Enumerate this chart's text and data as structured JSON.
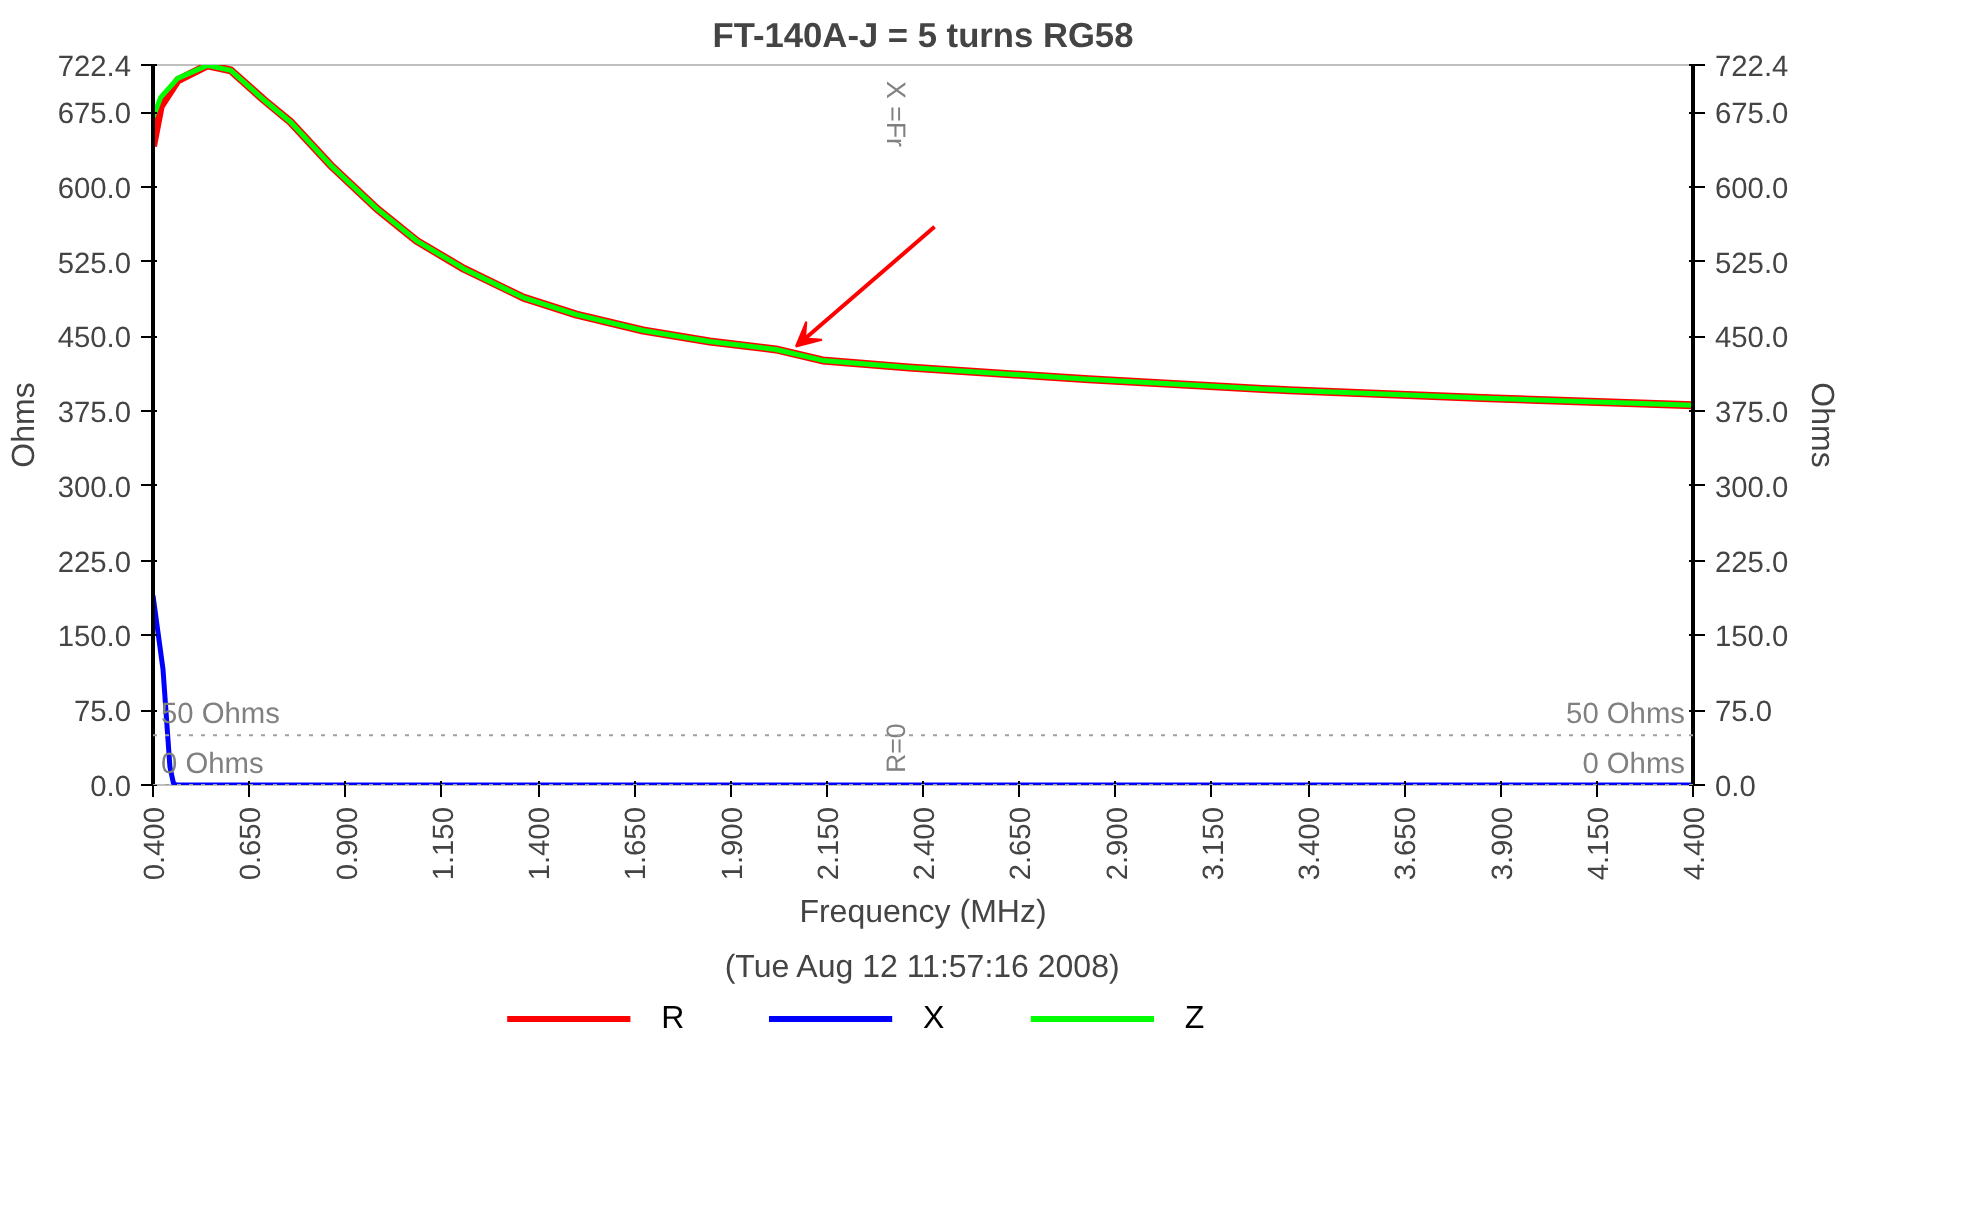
{
  "chart_data": {
    "type": "line",
    "title": "FT-140A-J = 5 turns RG58",
    "xlabel": "Frequency (MHz)",
    "ylabel": "Ohms",
    "y2label": "Ohms",
    "annotations": [
      "(Tue Aug 12 11:57:16 2008)",
      "X =Fr",
      "R=0"
    ],
    "xlim": [
      0.4,
      4.4
    ],
    "xticks": [
      {
        "value": 0.4,
        "label": "0.400"
      },
      {
        "value": 0.65,
        "label": "0.650"
      },
      {
        "value": 0.9,
        "label": "0.900"
      },
      {
        "value": 1.15,
        "label": "1.150"
      },
      {
        "value": 1.4,
        "label": "1.400"
      },
      {
        "value": 1.65,
        "label": "1.650"
      },
      {
        "value": 1.9,
        "label": "1.900"
      },
      {
        "value": 2.15,
        "label": "2.150"
      },
      {
        "value": 2.4,
        "label": "2.400"
      },
      {
        "value": 2.65,
        "label": "2.650"
      },
      {
        "value": 2.9,
        "label": "2.900"
      },
      {
        "value": 3.15,
        "label": "3.150"
      },
      {
        "value": 3.4,
        "label": "3.400"
      },
      {
        "value": 3.65,
        "label": "3.650"
      },
      {
        "value": 3.9,
        "label": "3.900"
      },
      {
        "value": 4.15,
        "label": "4.150"
      },
      {
        "value": 4.4,
        "label": "4.400"
      }
    ],
    "ylim": [
      0,
      722.4
    ],
    "yticks": [
      {
        "value": 0,
        "label": "0.0"
      },
      {
        "value": 75,
        "label": "75.0"
      },
      {
        "value": 150,
        "label": "150.0"
      },
      {
        "value": 225,
        "label": "225.0"
      },
      {
        "value": 300,
        "label": "300.0"
      },
      {
        "value": 375,
        "label": "375.0"
      },
      {
        "value": 450,
        "label": "450.0"
      },
      {
        "value": 525,
        "label": "525.0"
      },
      {
        "value": 600,
        "label": "600.0"
      },
      {
        "value": 675,
        "label": "675.0"
      },
      722.4
    ],
    "y2lim": [
      0,
      722.4
    ],
    "y2ticks": [
      {
        "value": 0,
        "label": "0.0"
      },
      {
        "value": 75,
        "label": "75.0"
      },
      {
        "value": 150,
        "label": "150.0"
      },
      {
        "value": 225,
        "label": "225.0"
      },
      {
        "value": 300,
        "label": "300.0"
      },
      {
        "value": 375,
        "label": "375.0"
      },
      {
        "value": 450,
        "label": "450.0"
      },
      {
        "value": 525,
        "label": "525.0"
      },
      {
        "value": 600,
        "label": "600.0"
      },
      {
        "value": 675,
        "label": "675.0"
      },
      722.4
    ],
    "grid": false,
    "legend": "bottom",
    "marker": "none",
    "line_style": "solid",
    "ref_lines": [
      {
        "axis": "y",
        "value": 50,
        "label": "50 Ohms",
        "color": "#a0a0a0",
        "line_style": "dotted"
      },
      {
        "axis": "y",
        "value": 0,
        "label": "0 Ohms",
        "color": "#a0a0a0",
        "line_style": "dotted"
      }
    ],
    "series": [
      {
        "name": "R",
        "color": "#ff0000",
        "x": [
          0.4,
          0.42,
          0.464,
          0.541,
          0.602,
          0.689,
          0.758,
          0.861,
          0.982,
          1.085,
          1.207,
          1.362,
          1.5,
          1.673,
          1.846,
          2.018,
          2.139,
          2.364,
          2.83,
          3.35,
          3.87,
          4.4
        ],
        "values": [
          641,
          681,
          707,
          722,
          717,
          687,
          665,
          622,
          578,
          546,
          518,
          489,
          472,
          456,
          445,
          437,
          426,
          419,
          407,
          396,
          388,
          381
        ]
      },
      {
        "name": "X",
        "color": "#0000ff",
        "x": [
          0.4,
          0.426,
          0.444,
          0.453,
          0.46,
          4.4
        ],
        "values": [
          190,
          116,
          18,
          2,
          0,
          0
        ]
      },
      {
        "name": "Z",
        "color": "#00ff00",
        "x": [
          0.4,
          0.42,
          0.464,
          0.541,
          0.602,
          0.689,
          0.758,
          0.861,
          0.982,
          1.085,
          1.207,
          1.362,
          1.5,
          1.673,
          1.846,
          2.018,
          2.139,
          2.364,
          2.83,
          3.35,
          3.87,
          4.4
        ],
        "values": [
          670,
          690,
          709,
          722,
          717,
          687,
          665,
          622,
          578,
          546,
          518,
          489,
          472,
          456,
          445,
          437,
          426,
          419,
          407,
          396,
          388,
          381
        ]
      }
    ]
  }
}
